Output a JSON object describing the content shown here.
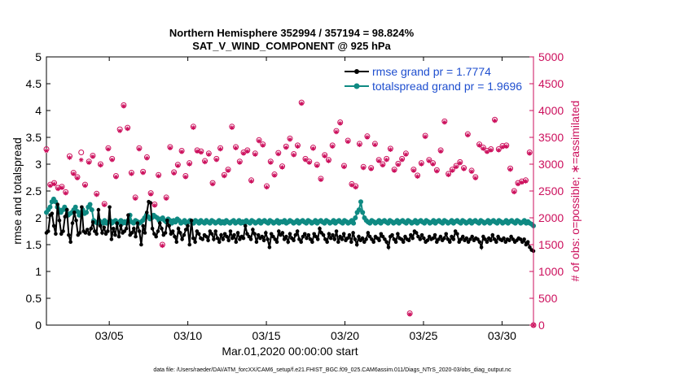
{
  "chart_data": {
    "type": "line",
    "title_line1": "Northern Hemisphere 352994 / 357194 = 98.824%",
    "title_line2": "SAT_V_WIND_COMPONENT @ 925 hPa",
    "xlabel": "Mar.01,2020 00:00:00 start",
    "ylabel_left": "rmse and totalspread",
    "ylabel_right": "# of obs: o=possible; ∗=assimilated",
    "footer": "data file: /Users/raeder/DAI/ATM_forcXX/CAM6_setup/f.e21.FHIST_BGC.f09_025.CAM6assim.011/Diags_NTrS_2020-03/obs_diag_output.nc",
    "xlim": [
      1,
      32
    ],
    "x_ticks": [
      {
        "label": "03/05",
        "day": 5
      },
      {
        "label": "03/10",
        "day": 10
      },
      {
        "label": "03/15",
        "day": 15
      },
      {
        "label": "03/20",
        "day": 20
      },
      {
        "label": "03/25",
        "day": 25
      },
      {
        "label": "03/30",
        "day": 30
      }
    ],
    "ylim_left": [
      0,
      5
    ],
    "left_ticks": [
      "0",
      "0.5",
      "1",
      "1.5",
      "2",
      "2.5",
      "3",
      "3.5",
      "4",
      "4.5",
      "5"
    ],
    "ylim_right": [
      0,
      5000
    ],
    "right_ticks": [
      "0",
      "500",
      "1000",
      "1500",
      "2000",
      "2500",
      "3000",
      "3500",
      "4000",
      "4500",
      "5000"
    ],
    "legend": {
      "placement": "top-right",
      "rmse_label": "rmse grand pr = 1.7774",
      "spread_label": "totalspread grand pr = 1.9696"
    },
    "colors": {
      "rmse": "#000000",
      "spread": "#0f8a83",
      "obs": "#cc0f5c",
      "legend_text": "#1f4fcf"
    },
    "series": [
      {
        "name": "rmse",
        "values": [
          1.72,
          1.75,
          2.05,
          2.08,
          1.85,
          1.7,
          2.25,
          1.95,
          1.7,
          1.75,
          2.02,
          2.15,
          1.68,
          1.55,
          1.9,
          2.1,
          1.95,
          1.68,
          1.72,
          2.2,
          1.75,
          1.72,
          1.78,
          1.7,
          1.8,
          1.92,
          1.75,
          1.7,
          2.15,
          1.85,
          1.72,
          1.82,
          1.7,
          1.75,
          2.2,
          1.6,
          1.8,
          1.68,
          1.9,
          1.65,
          1.85,
          1.72,
          1.75,
          1.8,
          2.05,
          1.68,
          1.72,
          1.8,
          1.65,
          1.9,
          1.75,
          1.5,
          1.85,
          1.72,
          2.1,
          2.3,
          2.28,
          1.8,
          1.7,
          1.65,
          1.75,
          1.9,
          1.8,
          1.68,
          1.72,
          1.95,
          1.85,
          1.7,
          1.75,
          1.65,
          1.55,
          1.8,
          1.72,
          1.6,
          1.68,
          1.78,
          1.85,
          1.5,
          1.95,
          1.62,
          1.55,
          1.75,
          1.7,
          1.62,
          1.6,
          1.68,
          1.65,
          1.58,
          1.75,
          1.7,
          1.6,
          1.75,
          1.62,
          1.55,
          1.68,
          1.6,
          1.7,
          1.65,
          1.58,
          1.75,
          1.62,
          1.68,
          1.55,
          1.72,
          1.6,
          1.65,
          1.62,
          1.85,
          1.7,
          1.65,
          1.6,
          1.78,
          1.7,
          1.55,
          1.68,
          1.62,
          1.65,
          1.58,
          1.72,
          1.6,
          1.45,
          1.7,
          1.65,
          1.6,
          1.55,
          1.75,
          1.68,
          1.72,
          1.6,
          1.65,
          1.55,
          1.7,
          1.62,
          1.58,
          1.68,
          1.75,
          1.6,
          1.55,
          1.65,
          1.7,
          1.62,
          1.68,
          1.6,
          1.55,
          1.7,
          1.65,
          1.6,
          1.8,
          1.72,
          1.68,
          1.6,
          1.55,
          1.7,
          1.62,
          1.68,
          1.6,
          1.75,
          1.55,
          1.65,
          1.6,
          1.7,
          1.58,
          1.62,
          1.68,
          1.55,
          1.72,
          1.6,
          1.5,
          1.65,
          1.58,
          1.62,
          1.55,
          1.6,
          1.72,
          1.65,
          1.6,
          1.55,
          1.65,
          1.62,
          1.58,
          1.7,
          1.65,
          1.6,
          1.55,
          1.45,
          1.65,
          1.68,
          1.6,
          1.55,
          1.7,
          1.62,
          1.6,
          1.55,
          1.65,
          1.6,
          1.58,
          1.68,
          1.62,
          1.75,
          1.72,
          1.65,
          1.6,
          1.68,
          1.62,
          1.55,
          1.58,
          1.65,
          1.6,
          1.62,
          1.68,
          1.55,
          1.6,
          1.65,
          1.58,
          1.62,
          1.7,
          1.6,
          1.55,
          1.65,
          1.6,
          1.75,
          1.7,
          1.55,
          1.6,
          1.65,
          1.58,
          1.62,
          1.55,
          1.6,
          1.65,
          1.58,
          1.62,
          1.6,
          1.55,
          1.45,
          1.65,
          1.6,
          1.55,
          1.62,
          1.58,
          1.68,
          1.6,
          1.55,
          1.65,
          1.6,
          1.58,
          1.62,
          1.55,
          1.6,
          1.58,
          1.65,
          1.6,
          1.55,
          1.58,
          1.62,
          1.6,
          1.55,
          1.6,
          1.5,
          1.55,
          1.45,
          1.4,
          1.38
        ]
      },
      {
        "name": "totalspread",
        "values": [
          2.1,
          2.15,
          2.2,
          2.3,
          2.35,
          2.3,
          2.2,
          2.15,
          2.1,
          2.15,
          2.2,
          2.15,
          2.05,
          2.08,
          2.1,
          2.15,
          2.2,
          2.12,
          2.05,
          2.1,
          2.15,
          2.08,
          2.1,
          2.2,
          2.25,
          2.15,
          1.95,
          1.92,
          1.9,
          1.95,
          1.92,
          1.9,
          1.95,
          1.9,
          1.92,
          1.95,
          1.9,
          1.93,
          1.95,
          1.9,
          1.92,
          1.95,
          1.9,
          1.93,
          1.9,
          1.95,
          2.05,
          1.92,
          1.9,
          1.95,
          1.93,
          1.9,
          1.92,
          1.95,
          2.0,
          2.05,
          2.02,
          1.98,
          2.0,
          2.05,
          2.02,
          2.0,
          1.95,
          1.98,
          2.0,
          1.95,
          1.92,
          1.98,
          1.95,
          1.9,
          1.95,
          1.92,
          1.98,
          1.95,
          1.9,
          1.92,
          1.95,
          1.9,
          1.92,
          1.95,
          1.92,
          1.9,
          1.95,
          1.93,
          1.9,
          1.95,
          1.92,
          1.9,
          1.95,
          1.92,
          1.9,
          1.95,
          1.93,
          1.9,
          1.92,
          1.95,
          1.9,
          1.93,
          1.9,
          1.95,
          1.92,
          1.9,
          1.93,
          1.95,
          1.9,
          1.92,
          1.95,
          1.9,
          1.93,
          1.9,
          1.95,
          1.92,
          1.9,
          1.95,
          1.93,
          1.9,
          1.92,
          1.95,
          1.9,
          1.93,
          1.95,
          1.92,
          1.9,
          1.95,
          1.93,
          1.9,
          1.92,
          1.95,
          1.9,
          1.93,
          1.92,
          1.95,
          1.9,
          1.92,
          1.95,
          1.93,
          1.9,
          1.92,
          1.95,
          1.9,
          1.93,
          1.95,
          1.92,
          1.9,
          1.95,
          1.93,
          1.9,
          1.92,
          1.95,
          1.9,
          1.93,
          1.95,
          1.92,
          1.9,
          1.95,
          1.93,
          1.9,
          1.92,
          1.95,
          1.9,
          1.93,
          1.95,
          1.92,
          1.9,
          1.95,
          1.93,
          1.9,
          1.92,
          1.95,
          1.9,
          2.0,
          2.1,
          2.15,
          2.3,
          2.1,
          2.0,
          1.95,
          1.92,
          1.9,
          1.95,
          1.93,
          1.9,
          1.92,
          1.95,
          1.9,
          1.93,
          1.95,
          1.92,
          1.9,
          1.95,
          1.93,
          1.9,
          1.92,
          1.95,
          1.9,
          1.93,
          1.95,
          1.92,
          1.9,
          1.95,
          1.93,
          1.9,
          1.92,
          1.95,
          1.9,
          1.93,
          1.95,
          1.92,
          1.9,
          1.95,
          1.93,
          1.9,
          1.92,
          1.95,
          1.9,
          1.93,
          1.95,
          1.92,
          1.9,
          1.95,
          1.93,
          1.9,
          1.92,
          1.95,
          1.9,
          1.93,
          1.95,
          1.92,
          1.9,
          1.95,
          1.93,
          1.9,
          1.92,
          1.95,
          1.9,
          1.93,
          1.95,
          1.92,
          1.9,
          1.95,
          1.93,
          1.9,
          1.92,
          1.95,
          1.9,
          1.93,
          1.95,
          1.92,
          1.9,
          1.95,
          1.93,
          1.9,
          1.92,
          1.95,
          1.9,
          1.93,
          1.95,
          1.92,
          1.9,
          1.95,
          1.93,
          1.9,
          1.92,
          1.95,
          1.9,
          1.93,
          1.9,
          1.88,
          1.85
        ]
      },
      {
        "name": "obs_possible",
        "values": [
          3280,
          2620,
          2650,
          2560,
          2580,
          2480,
          3150,
          2840,
          2760,
          3220,
          2620,
          3050,
          3160,
          2450,
          3000,
          2260,
          3300,
          3100,
          2780,
          3650,
          4100,
          3680,
          2840,
          2380,
          3300,
          2860,
          3130,
          2460,
          2250,
          2800,
          1500,
          2380,
          3320,
          2850,
          2990,
          3250,
          2780,
          3020,
          3700,
          3260,
          3240,
          3060,
          3200,
          2650,
          3100,
          3300,
          2800,
          2900,
          3700,
          3320,
          3050,
          3220,
          3260,
          2700,
          3200,
          3450,
          3370,
          2590,
          3050,
          2810,
          3210,
          2960,
          3330,
          3480,
          3190,
          3350,
          4150,
          3100,
          3050,
          3310,
          2990,
          2730,
          3170,
          3080,
          3350,
          3620,
          3780,
          2970,
          3440,
          2630,
          2590,
          3380,
          2950,
          3520,
          2930,
          3380,
          3080,
          3000,
          3100,
          3290,
          2900,
          3010,
          3100,
          3200,
          220,
          2900,
          2790,
          3020,
          3530,
          3080,
          3020,
          2890,
          3260,
          3800,
          2820,
          2900,
          2970,
          3040,
          2930,
          3560,
          2880,
          2760,
          3370,
          3310,
          3250,
          3280,
          3830,
          3280,
          3340,
          3350,
          2920,
          2500,
          2650,
          2680,
          2700,
          3220,
          0
        ]
      },
      {
        "name": "obs_assimilated",
        "values": [
          3250,
          2600,
          2630,
          2540,
          2560,
          2460,
          3120,
          2820,
          2740,
          3080,
          2600,
          3030,
          3140,
          2430,
          2980,
          2240,
          3280,
          3080,
          2760,
          3620,
          4080,
          3660,
          2820,
          2360,
          3280,
          2840,
          3110,
          2440,
          2230,
          2780,
          1480,
          2360,
          3300,
          2830,
          2970,
          3230,
          2760,
          3000,
          3680,
          3240,
          3220,
          3040,
          3180,
          2630,
          3080,
          3280,
          2780,
          2880,
          3680,
          3300,
          3030,
          3200,
          3240,
          2680,
          3180,
          3430,
          3350,
          2570,
          3030,
          2790,
          3190,
          2940,
          3310,
          3460,
          3170,
          3330,
          4130,
          3080,
          3030,
          3290,
          2970,
          2710,
          3150,
          3060,
          3330,
          3600,
          3760,
          2950,
          3420,
          2610,
          2570,
          3360,
          2930,
          3500,
          2910,
          3360,
          3060,
          2980,
          3080,
          3270,
          2880,
          2990,
          3080,
          3180,
          200,
          2880,
          2770,
          3000,
          3510,
          3060,
          3000,
          2870,
          3240,
          3780,
          2800,
          2880,
          2950,
          3020,
          2910,
          3540,
          2860,
          2740,
          3350,
          3290,
          3230,
          3260,
          3810,
          3260,
          3320,
          3330,
          2900,
          2480,
          2630,
          2660,
          2680,
          3200,
          0
        ]
      }
    ]
  }
}
